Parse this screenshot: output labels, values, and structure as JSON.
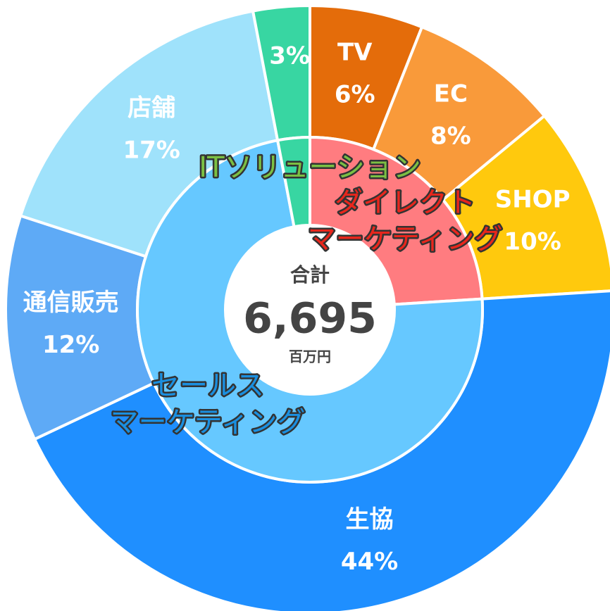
{
  "chart_data": {
    "type": "nested-donut",
    "center": {
      "title": "合計",
      "total": "6,695",
      "unit": "百万円"
    },
    "outer": {
      "categories": [
        "TV",
        "EC",
        "SHOP",
        "生協",
        "通信販売",
        "店舗",
        null
      ],
      "values": [
        6,
        8,
        10,
        44,
        12,
        17,
        3
      ],
      "value_labels": [
        "6%",
        "8%",
        "10%",
        "44%",
        "12%",
        "17%",
        "3%"
      ],
      "colors": [
        "#e46c0a",
        "#f99a3a",
        "#ffc90d",
        "#1f8fff",
        "#5eaaf6",
        "#9fe2fb",
        "#38d6a2"
      ]
    },
    "inner": {
      "categories": [
        [
          "ダイレクト",
          "マーケティング"
        ],
        [
          "セールス",
          "マーケティング"
        ],
        [
          "ITソリューション"
        ]
      ],
      "values": [
        24,
        73,
        3
      ],
      "colors": [
        "#ff7c80",
        "#66c8ff",
        "#38d6a2"
      ],
      "label_colors": [
        "#e8261c",
        "#1a8fe0",
        "#7bc043"
      ]
    }
  }
}
